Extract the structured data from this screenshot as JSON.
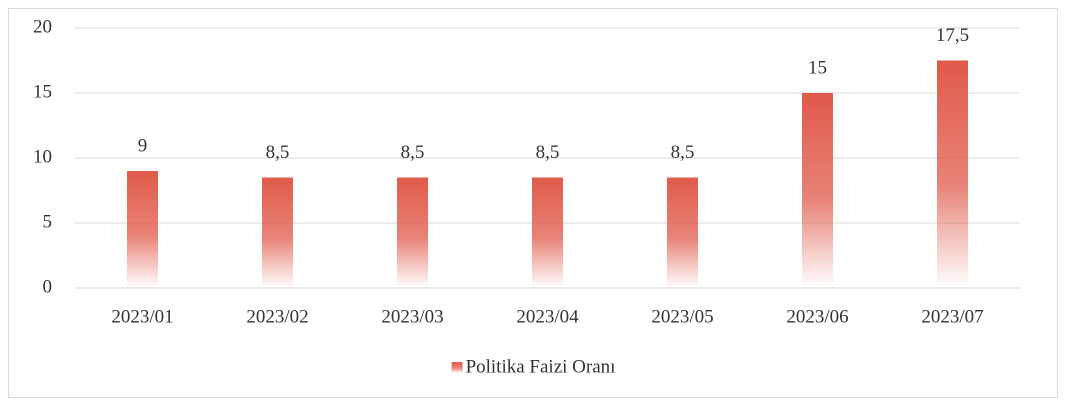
{
  "chart_data": {
    "type": "bar",
    "categories": [
      "2023/01",
      "2023/02",
      "2023/03",
      "2023/04",
      "2023/05",
      "2023/06",
      "2023/07"
    ],
    "series": [
      {
        "name": "Politika Faizi Oranı",
        "color": "#e05a4a",
        "values": [
          9,
          8.5,
          8.5,
          8.5,
          8.5,
          15,
          17.5
        ],
        "value_labels": [
          "9",
          "8,5",
          "8,5",
          "8,5",
          "8,5",
          "15",
          "17,5"
        ]
      }
    ],
    "ylim": [
      0,
      20
    ],
    "yticks": [
      0,
      5,
      10,
      15,
      20
    ],
    "grid": true,
    "legend": "bottom"
  }
}
